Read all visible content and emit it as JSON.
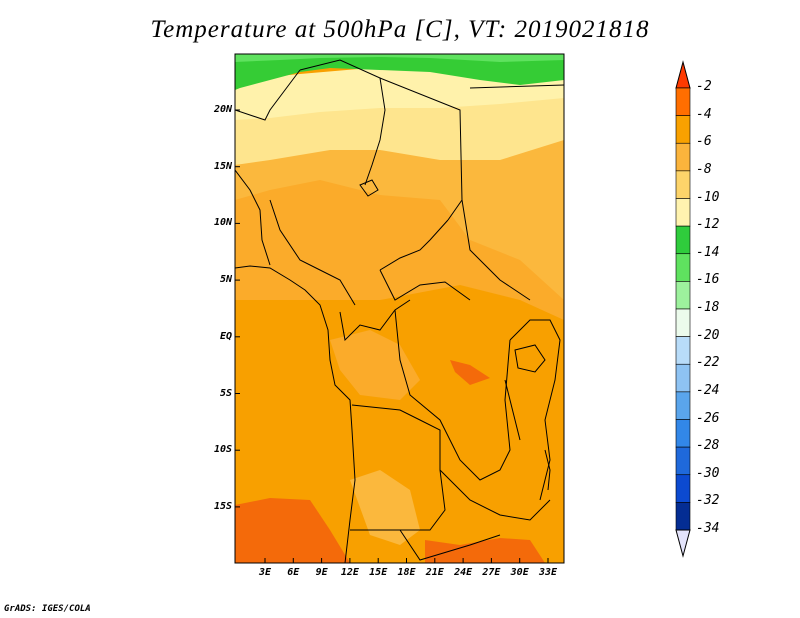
{
  "title": "Temperature at 500hPa [C], VT: 2019021818",
  "footer": "GrADS: IGES/COLA",
  "lat_labels": [
    "20N",
    "15N",
    "10N",
    "5N",
    "EQ",
    "5S",
    "10S",
    "15S"
  ],
  "lon_labels": [
    "3E",
    "6E",
    "9E",
    "12E",
    "15E",
    "18E",
    "21E",
    "24E",
    "27E",
    "30E",
    "33E"
  ],
  "colorbar": {
    "labels": [
      "-2",
      "-4",
      "-6",
      "-8",
      "-10",
      "-12",
      "-14",
      "-16",
      "-18",
      "-20",
      "-22",
      "-24",
      "-26",
      "-28",
      "-30",
      "-32",
      "-34"
    ],
    "colors": [
      "#ff3a00",
      "#ff6e00",
      "#f9a100",
      "#fbb43c",
      "#fdd46a",
      "#fff3af",
      "#2fcc3c",
      "#5fe25f",
      "#9df19d",
      "#ecfbec",
      "#b8dcf9",
      "#8ec3f3",
      "#5aa5ec",
      "#3287e8",
      "#1f69db",
      "#0c4ad0",
      "#042d93",
      "#040b68"
    ]
  },
  "colors": {
    "warm_ne": "#fbba3e",
    "warm_mid": "#fbab2a",
    "warm_south": "#f8a000",
    "hot_patch": "#f46a0a",
    "cool_band": "#fee58e",
    "pale_band": "#fff2ab",
    "green_band": "#35cc35",
    "border": "#000000"
  }
}
